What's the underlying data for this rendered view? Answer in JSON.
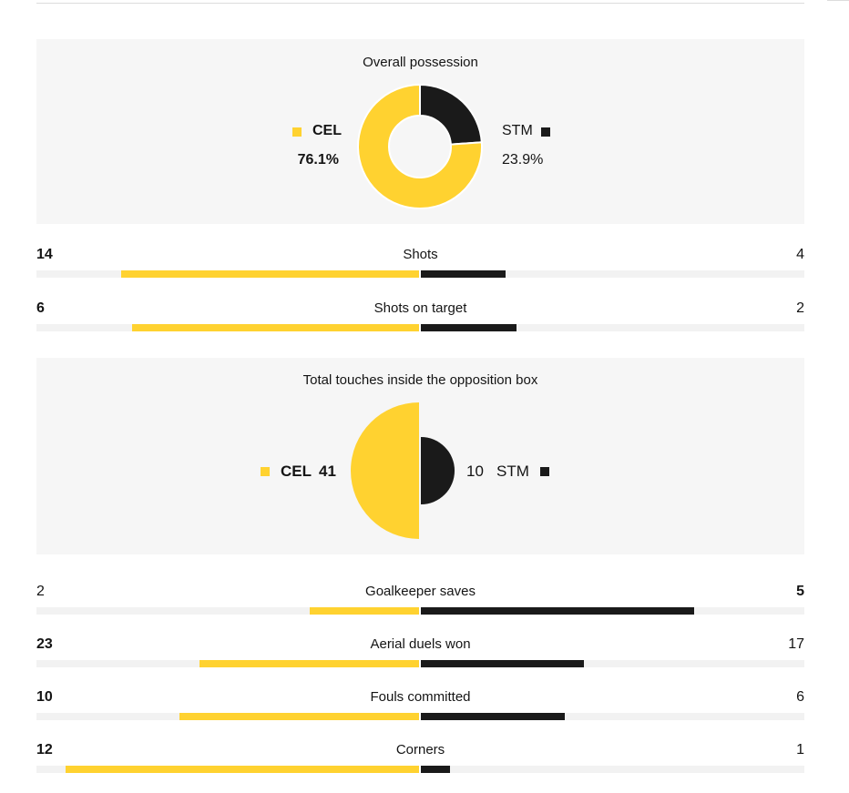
{
  "colors": {
    "home": "#ffd230",
    "away": "#1a1a1a",
    "panel_bg": "#f6f6f6",
    "track_bg": "#f2f2f2"
  },
  "teams": {
    "home": "CEL",
    "away": "STM"
  },
  "possession": {
    "title": "Overall possession",
    "home_label": "76.1%",
    "away_label": "23.9%"
  },
  "touches": {
    "title": "Total touches inside the opposition box",
    "home_label": "41",
    "away_label": "10"
  },
  "stats": [
    {
      "name": "Shots",
      "home": "14",
      "away": "4"
    },
    {
      "name": "Shots on target",
      "home": "6",
      "away": "2"
    },
    {
      "name": "Goalkeeper saves",
      "home": "2",
      "away": "5"
    },
    {
      "name": "Aerial duels won",
      "home": "23",
      "away": "17"
    },
    {
      "name": "Fouls committed",
      "home": "10",
      "away": "6"
    },
    {
      "name": "Corners",
      "home": "12",
      "away": "1"
    }
  ],
  "chart_data": [
    {
      "type": "pie",
      "title": "Overall possession",
      "series": [
        {
          "name": "CEL",
          "value": 76.1,
          "color": "#ffd230"
        },
        {
          "name": "STM",
          "value": 23.9,
          "color": "#1a1a1a"
        }
      ]
    },
    {
      "type": "pie",
      "title": "Total touches inside the opposition box",
      "series": [
        {
          "name": "CEL",
          "value": 41,
          "color": "#ffd230"
        },
        {
          "name": "STM",
          "value": 10,
          "color": "#1a1a1a"
        }
      ]
    },
    {
      "type": "bar",
      "categories": [
        "Shots",
        "Shots on target",
        "Goalkeeper saves",
        "Aerial duels won",
        "Fouls committed",
        "Corners"
      ],
      "series": [
        {
          "name": "CEL",
          "values": [
            14,
            6,
            2,
            23,
            10,
            12
          ]
        },
        {
          "name": "STM",
          "values": [
            4,
            2,
            5,
            17,
            6,
            1
          ]
        }
      ]
    }
  ]
}
